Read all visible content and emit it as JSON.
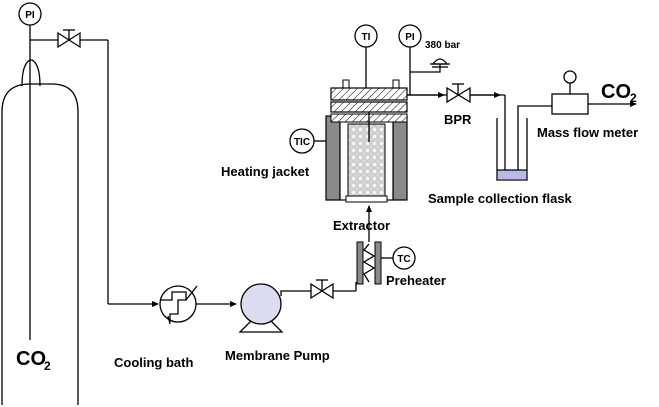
{
  "labels": {
    "pi_cylinder": "PI",
    "ti": "TI",
    "pi_extractor": "PI",
    "rupture_disc": "380 bar",
    "co2_outlet_main": "CO",
    "co2_outlet_sub": "2",
    "bpr": "BPR",
    "mass_flow_meter": "Mass flow meter",
    "tic": "TIC",
    "heating_jacket": "Heating jacket",
    "sample_collection_flask": "Sample collection flask",
    "extractor": "Extractor",
    "tc": "TC",
    "preheater": "Preheater",
    "cooling_bath": "Cooling bath",
    "membrane_pump": "Membrane Pump",
    "co2_cylinder_main": "CO",
    "co2_cylinder_sub": "2"
  },
  "colors": {
    "line": "#000000",
    "jacket": "#8a8a8a",
    "packing": "#cfcfcf",
    "flask_liquid": "#b9b9e8",
    "gray_light": "#dcdcdc"
  }
}
